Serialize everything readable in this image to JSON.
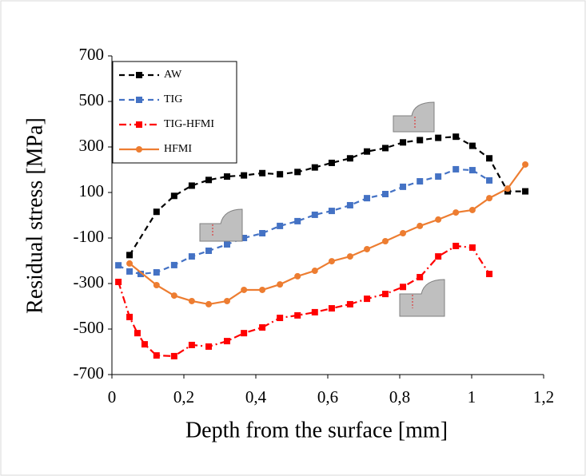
{
  "chart_data": {
    "type": "line",
    "x_label": "Depth from the surface  [mm]",
    "y_label": "Residual stress [MPa]",
    "xlim": [
      0,
      1.2
    ],
    "ylim": [
      -700,
      700
    ],
    "xticks": [
      0,
      {
        "value": 0.2,
        "label": "0,2"
      },
      {
        "value": 0.4,
        "label": "0,4"
      },
      {
        "value": 0.6,
        "label": "0,6"
      },
      {
        "value": 0.8,
        "label": "0,8"
      },
      1,
      {
        "value": 1.2,
        "label": "1,2"
      }
    ],
    "yticks": [
      -700,
      -500,
      -300,
      -100,
      100,
      300,
      500,
      700
    ],
    "legend": "top-left",
    "series": [
      {
        "name": "AW",
        "color": "#000000",
        "marker": "square",
        "dash": "dash",
        "x": [
          0.049,
          0.124,
          0.173,
          0.222,
          0.269,
          0.32,
          0.367,
          0.418,
          0.467,
          0.516,
          0.564,
          0.611,
          0.662,
          0.709,
          0.76,
          0.809,
          0.856,
          0.907,
          0.956,
          1.002,
          1.049,
          1.1,
          1.149
        ],
        "values": [
          -175,
          15,
          85,
          130,
          155,
          170,
          175,
          185,
          180,
          190,
          210,
          230,
          250,
          280,
          295,
          320,
          330,
          340,
          345,
          305,
          250,
          105,
          105
        ]
      },
      {
        "name": "TIG",
        "color": "#4472c4",
        "marker": "square",
        "dash": "dash",
        "x": [
          0.018,
          0.049,
          0.08,
          0.124,
          0.173,
          0.222,
          0.269,
          0.32,
          0.367,
          0.418,
          0.467,
          0.516,
          0.564,
          0.611,
          0.662,
          0.709,
          0.76,
          0.809,
          0.856,
          0.907,
          0.956,
          1.002,
          1.049
        ],
        "values": [
          -220,
          -247,
          -258,
          -251,
          -219,
          -181,
          -156,
          -128,
          -100,
          -79,
          -47,
          -26,
          2,
          19,
          44,
          75,
          93,
          125,
          149,
          170,
          202,
          198,
          153
        ]
      },
      {
        "name": "TIG-HFMI",
        "color": "#ff0000",
        "marker": "square",
        "dash": "dashdot",
        "x": [
          0.018,
          0.049,
          0.071,
          0.091,
          0.124,
          0.173,
          0.222,
          0.269,
          0.32,
          0.367,
          0.418,
          0.467,
          0.516,
          0.564,
          0.611,
          0.662,
          0.709,
          0.76,
          0.809,
          0.856,
          0.907,
          0.956,
          1.002,
          1.049
        ],
        "values": [
          -293,
          -447,
          -518,
          -567,
          -616,
          -619,
          -570,
          -577,
          -553,
          -518,
          -493,
          -451,
          -440,
          -426,
          -409,
          -391,
          -367,
          -346,
          -315,
          -272,
          -181,
          -135,
          -142,
          -258
        ]
      },
      {
        "name": "HFMI",
        "color": "#ed7d31",
        "marker": "circle",
        "dash": "solid",
        "x": [
          0.049,
          0.124,
          0.173,
          0.222,
          0.269,
          0.32,
          0.367,
          0.418,
          0.467,
          0.516,
          0.564,
          0.611,
          0.662,
          0.709,
          0.76,
          0.809,
          0.856,
          0.907,
          0.956,
          1.002,
          1.049,
          1.1,
          1.149
        ],
        "values": [
          -212,
          -307,
          -353,
          -377,
          -391,
          -377,
          -328,
          -328,
          -304,
          -268,
          -244,
          -202,
          -181,
          -149,
          -114,
          -79,
          -47,
          -19,
          12,
          23,
          75,
          117,
          223
        ]
      }
    ]
  }
}
